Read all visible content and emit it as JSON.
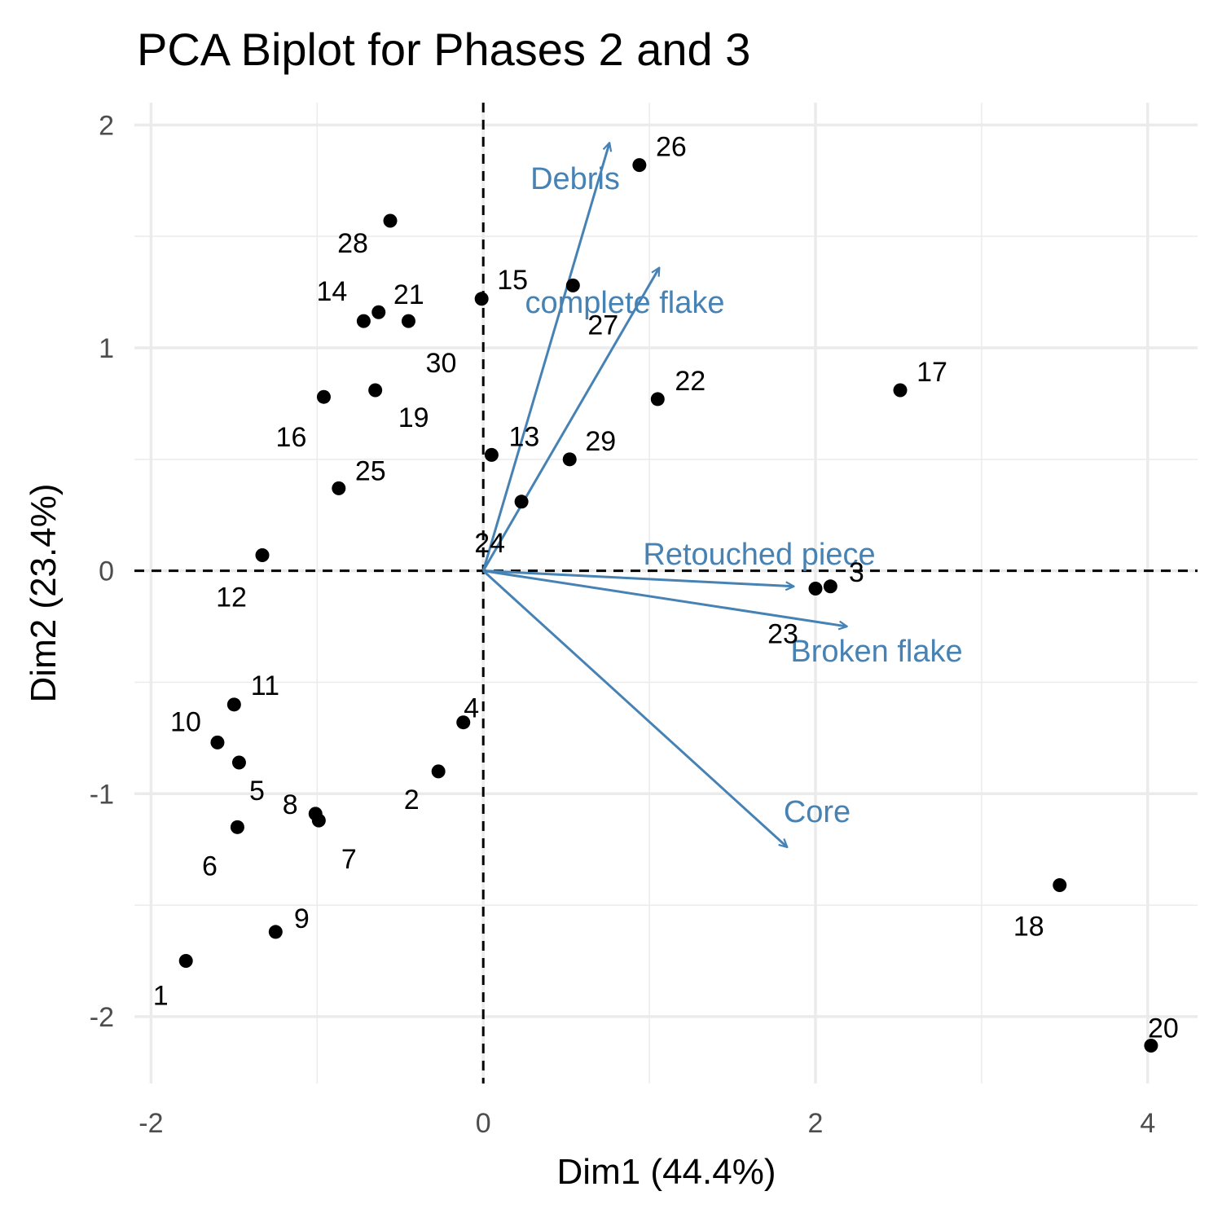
{
  "chart_data": {
    "type": "scatter",
    "title": "PCA Biplot for Phases 2 and 3",
    "xlabel": "Dim1 (44.4%)",
    "ylabel": "Dim2 (23.4%)",
    "xlim": [
      -2.1,
      4.3
    ],
    "ylim": [
      -2.3,
      2.1
    ],
    "x_ticks": [
      -2,
      0,
      2,
      4
    ],
    "x_tick_labels": [
      "-2",
      "0",
      "2",
      "4"
    ],
    "y_ticks": [
      -2,
      -1,
      0,
      1,
      2
    ],
    "y_tick_labels": [
      "-2",
      "-1",
      "0",
      "1",
      "2"
    ],
    "grid": true,
    "reference_lines": {
      "x": 0,
      "y": 0,
      "style": "dashed"
    },
    "point_color": "#000000",
    "arrow_color": "#4682b4",
    "points": [
      {
        "label": "1",
        "x": -1.79,
        "y": -1.75
      },
      {
        "label": "2",
        "x": -0.27,
        "y": -0.9
      },
      {
        "label": "3",
        "x": 2.09,
        "y": -0.07
      },
      {
        "label": "4",
        "x": -0.12,
        "y": -0.68
      },
      {
        "label": "5",
        "x": -1.47,
        "y": -0.86
      },
      {
        "label": "6",
        "x": -1.48,
        "y": -1.15
      },
      {
        "label": "7",
        "x": -0.99,
        "y": -1.12
      },
      {
        "label": "8",
        "x": -1.01,
        "y": -1.09
      },
      {
        "label": "9",
        "x": -1.25,
        "y": -1.62
      },
      {
        "label": "10",
        "x": -1.6,
        "y": -0.77
      },
      {
        "label": "11",
        "x": -1.5,
        "y": -0.6
      },
      {
        "label": "12",
        "x": -1.33,
        "y": 0.07
      },
      {
        "label": "13",
        "x": 0.05,
        "y": 0.52
      },
      {
        "label": "14",
        "x": -0.72,
        "y": 1.12
      },
      {
        "label": "15",
        "x": -0.01,
        "y": 1.22
      },
      {
        "label": "16",
        "x": -0.96,
        "y": 0.78
      },
      {
        "label": "17",
        "x": 2.51,
        "y": 0.81
      },
      {
        "label": "18",
        "x": 3.47,
        "y": -1.41
      },
      {
        "label": "19",
        "x": -0.65,
        "y": 0.81
      },
      {
        "label": "20",
        "x": 4.02,
        "y": -2.13
      },
      {
        "label": "21",
        "x": -0.63,
        "y": 1.16
      },
      {
        "label": "22",
        "x": 1.05,
        "y": 0.77
      },
      {
        "label": "23",
        "x": 2.0,
        "y": -0.08
      },
      {
        "label": "24",
        "x": 0.23,
        "y": 0.31
      },
      {
        "label": "25",
        "x": -0.87,
        "y": 0.37
      },
      {
        "label": "26",
        "x": 0.94,
        "y": 1.82
      },
      {
        "label": "27",
        "x": 0.54,
        "y": 1.28
      },
      {
        "label": "28",
        "x": -0.56,
        "y": 1.57
      },
      {
        "label": "29",
        "x": 0.52,
        "y": 0.5
      },
      {
        "label": "30",
        "x": -0.45,
        "y": 1.12
      }
    ],
    "variables": [
      {
        "name": "Debris",
        "x": 0.76,
        "y": 1.92
      },
      {
        "name": "complete flake",
        "x": 1.06,
        "y": 1.36
      },
      {
        "name": "Retouched piece",
        "x": 1.87,
        "y": -0.07
      },
      {
        "name": "Broken flake",
        "x": 2.19,
        "y": -0.25
      },
      {
        "name": "Core",
        "x": 1.83,
        "y": -1.24
      }
    ]
  }
}
